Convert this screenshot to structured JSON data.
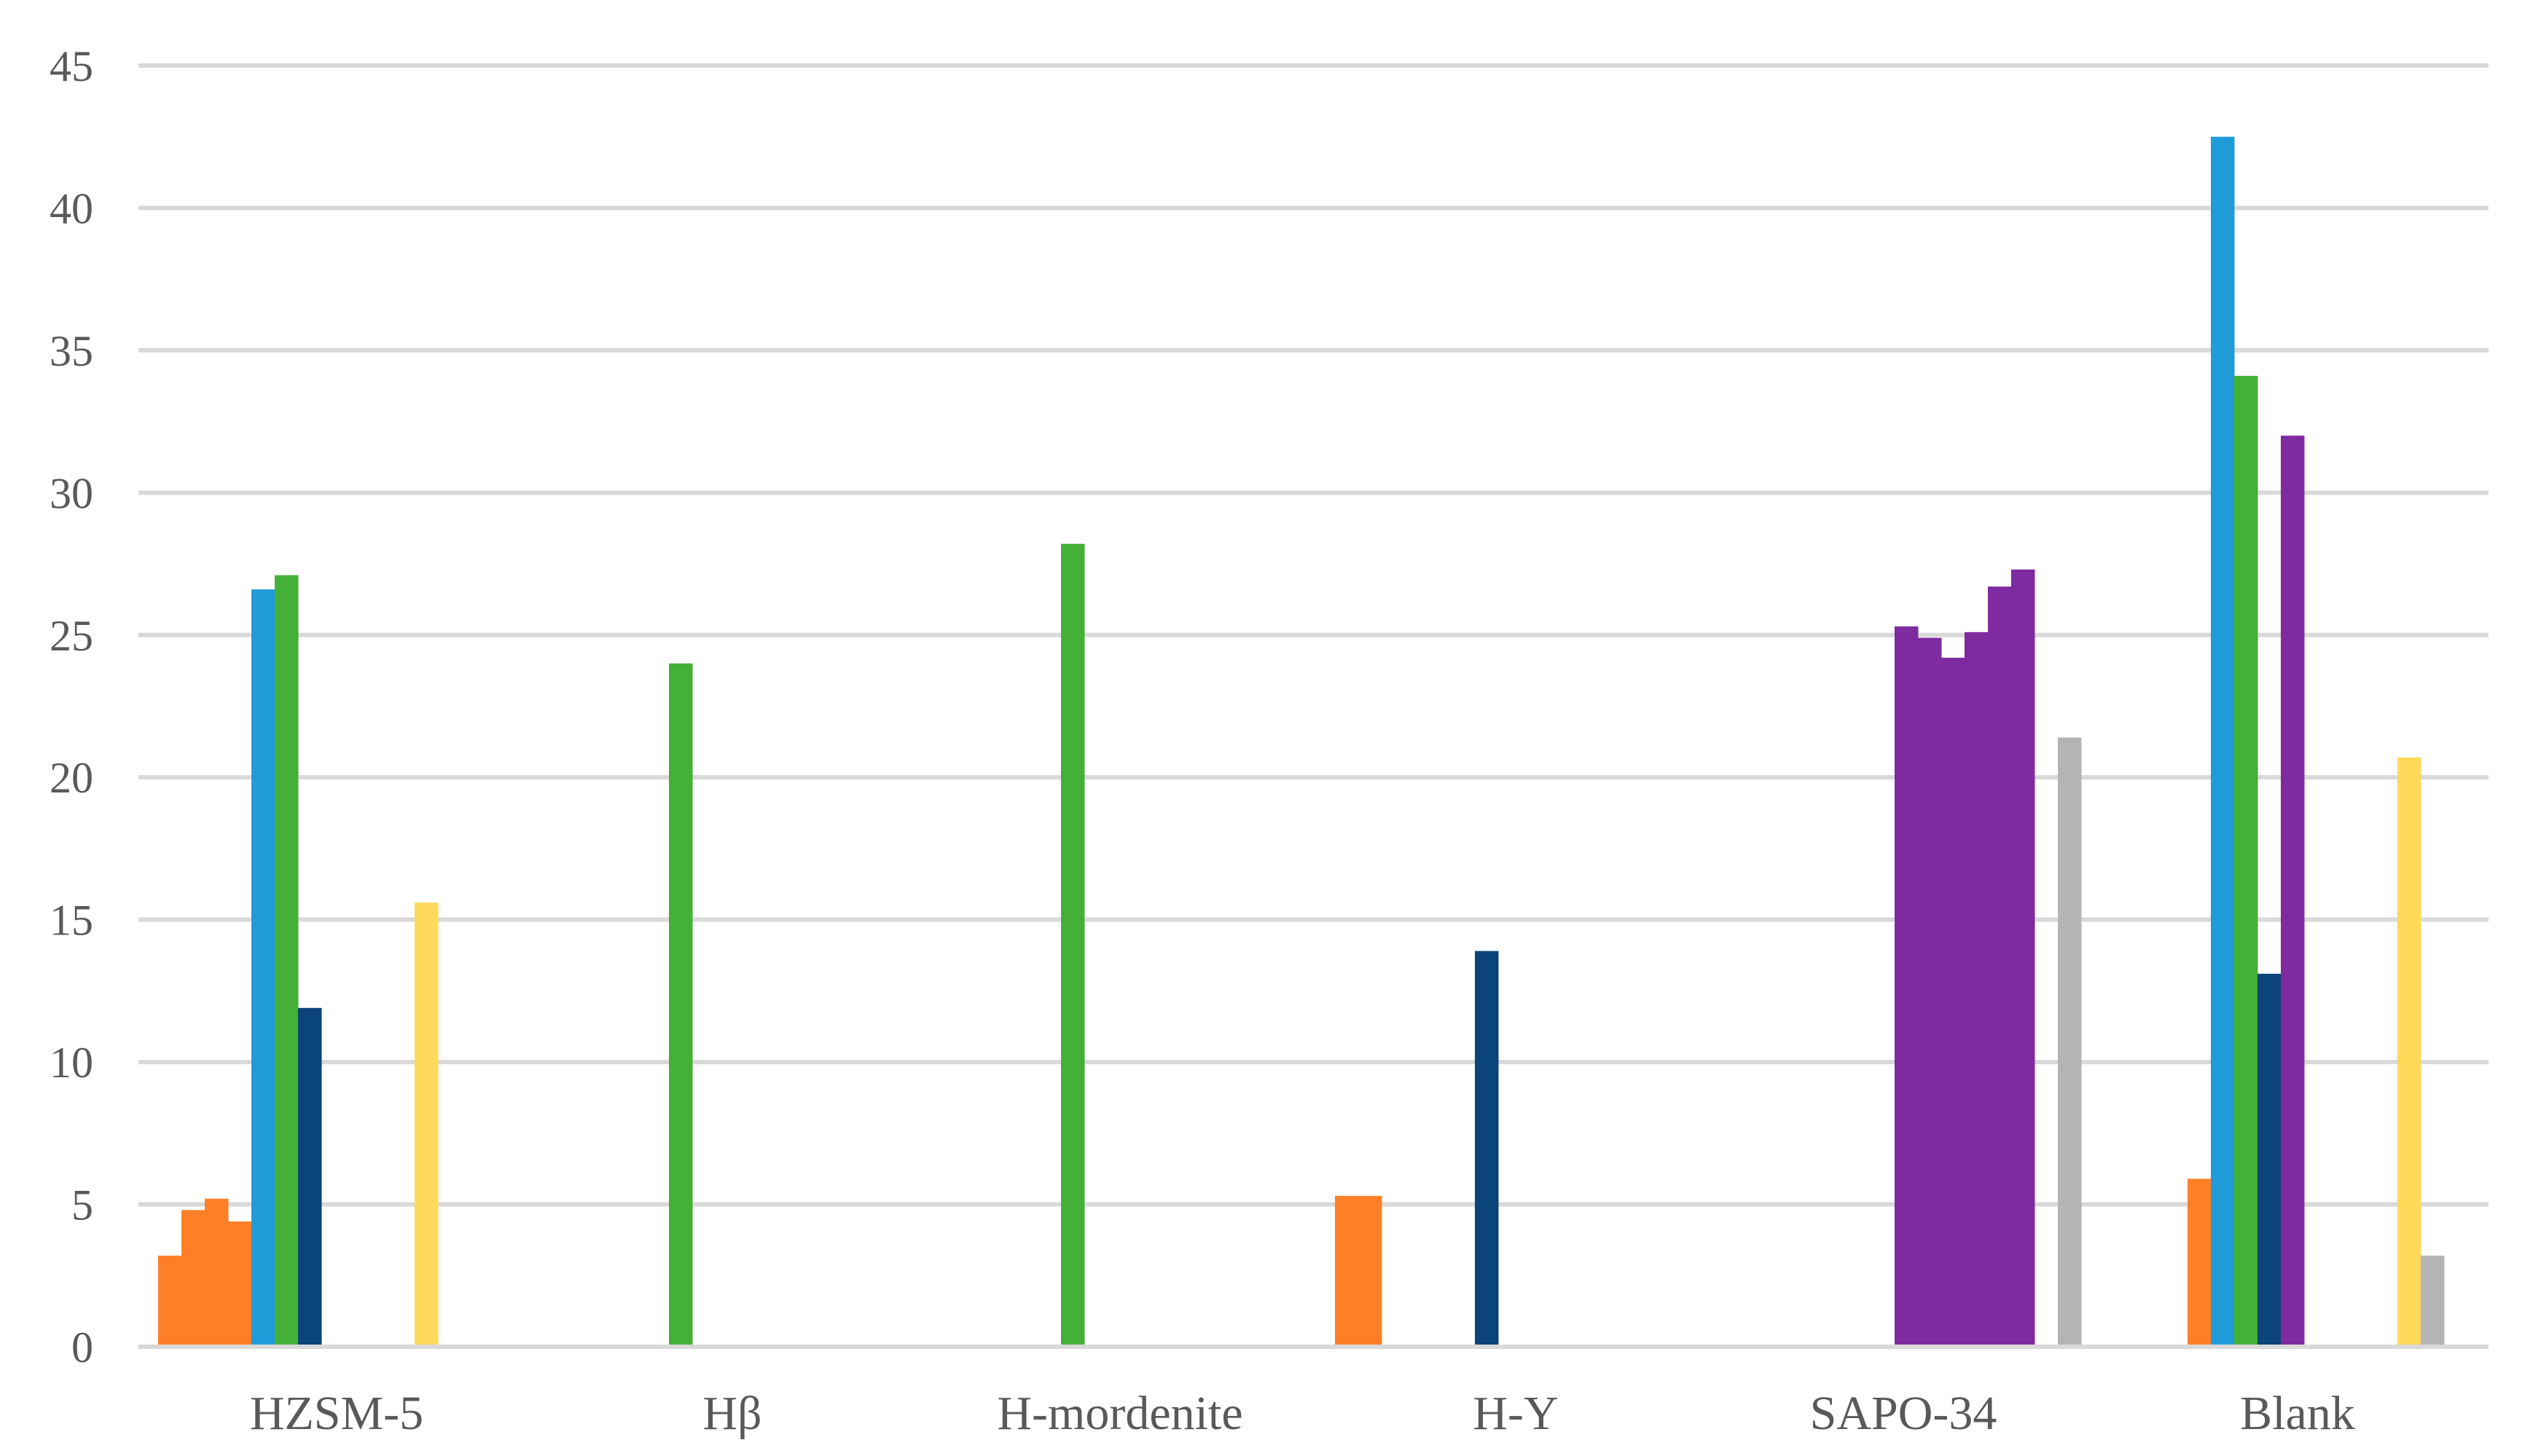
{
  "chart_data": {
    "type": "bar",
    "title": "",
    "xlabel": "",
    "ylabel": "",
    "ylim": [
      0,
      45
    ],
    "yticks": [
      0,
      5,
      10,
      15,
      20,
      25,
      30,
      35,
      40,
      45
    ],
    "grid": true,
    "legend": "none",
    "categories": [
      {
        "label": "HZSM-5",
        "bars": [
          {
            "value": 3.2,
            "color": "#FF7F27"
          },
          {
            "value": 4.8,
            "color": "#FF7F27"
          },
          {
            "value": 5.2,
            "color": "#FF7F27"
          },
          {
            "value": 4.4,
            "color": "#FF7F27"
          },
          {
            "value": 26.6,
            "color": "#1F9BD7"
          },
          {
            "value": 27.1,
            "color": "#44B035"
          },
          {
            "value": 11.9,
            "color": "#0A4478"
          },
          {
            "value": 0,
            "color": "#7F2BA0"
          },
          {
            "value": 0,
            "color": "#7F2BA0"
          },
          {
            "value": 0,
            "color": "#7F2BA0"
          },
          {
            "value": 0,
            "color": "#7F2BA0"
          },
          {
            "value": 15.6,
            "color": "#FFD95A"
          }
        ]
      },
      {
        "label": "Hβ",
        "bars": [
          {
            "value": 24.0,
            "color": "#44B035"
          }
        ]
      },
      {
        "label": "H-mordenite",
        "bars": [
          {
            "value": 28.2,
            "color": "#44B035"
          }
        ]
      },
      {
        "label": "H-Y",
        "bars": [
          {
            "value": 5.3,
            "color": "#FF7F27"
          },
          {
            "value": 5.3,
            "color": "#FF7F27"
          },
          {
            "value": 0,
            "color": "#1F9BD7"
          },
          {
            "value": 0,
            "color": "#44B035"
          },
          {
            "value": 0,
            "color": "#44B035"
          },
          {
            "value": 0,
            "color": "#44B035"
          },
          {
            "value": 13.9,
            "color": "#0A4478"
          }
        ]
      },
      {
        "label": "SAPO-34",
        "bars": [
          {
            "value": 25.3,
            "color": "#7F2BA0"
          },
          {
            "value": 24.9,
            "color": "#7F2BA0"
          },
          {
            "value": 24.2,
            "color": "#7F2BA0"
          },
          {
            "value": 25.1,
            "color": "#7F2BA0"
          },
          {
            "value": 26.7,
            "color": "#7F2BA0"
          },
          {
            "value": 27.3,
            "color": "#7F2BA0"
          },
          {
            "value": 0,
            "color": "#FFD95A"
          },
          {
            "value": 21.4,
            "color": "#B4B4B4"
          }
        ]
      },
      {
        "label": "Blank",
        "bars": [
          {
            "value": 5.9,
            "color": "#FF7F27"
          },
          {
            "value": 42.5,
            "color": "#1F9BD7"
          },
          {
            "value": 34.1,
            "color": "#44B035"
          },
          {
            "value": 13.1,
            "color": "#0A4478"
          },
          {
            "value": 32.0,
            "color": "#7F2BA0"
          },
          {
            "value": 0,
            "color": "#7F2BA0"
          },
          {
            "value": 0,
            "color": "#7F2BA0"
          },
          {
            "value": 0,
            "color": "#7F2BA0"
          },
          {
            "value": 0,
            "color": "#7F2BA0"
          },
          {
            "value": 20.7,
            "color": "#FFD95A"
          },
          {
            "value": 3.2,
            "color": "#B4B4B4"
          }
        ]
      }
    ]
  }
}
